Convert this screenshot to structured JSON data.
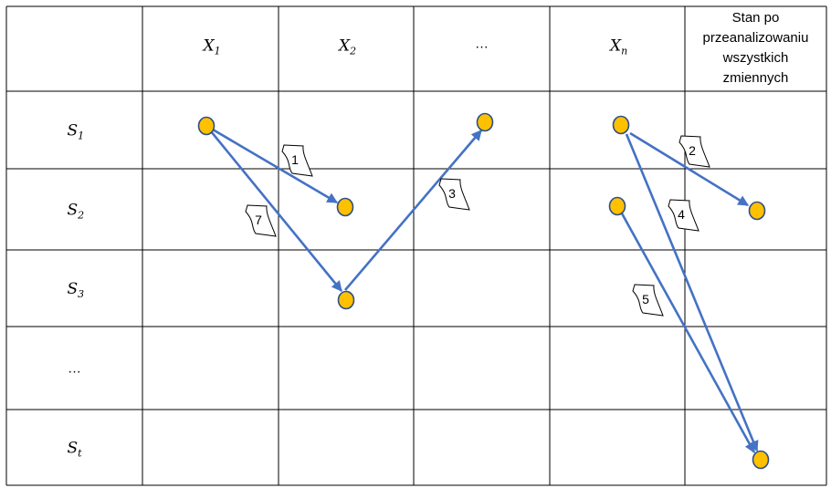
{
  "table": {
    "column_headers": [
      {
        "id": "col-empty",
        "text": ""
      },
      {
        "id": "col-x1",
        "base": "X",
        "sub": "1"
      },
      {
        "id": "col-x2",
        "base": "X",
        "sub": "2"
      },
      {
        "id": "col-ellipsis",
        "text": "…"
      },
      {
        "id": "col-xn",
        "base": "X",
        "sub": "n"
      },
      {
        "id": "col-final",
        "lines": [
          "Stan po",
          "przeanalizowaniu",
          "wszystkich",
          "zmiennych"
        ]
      }
    ],
    "row_headers": [
      {
        "id": "row-s1",
        "base": "S",
        "sub": "1"
      },
      {
        "id": "row-s2",
        "base": "S",
        "sub": "2"
      },
      {
        "id": "row-s3",
        "base": "S",
        "sub": "3"
      },
      {
        "id": "row-ellipsis",
        "text": "…"
      },
      {
        "id": "row-st",
        "base": "S",
        "sub": "t"
      }
    ]
  },
  "states": [
    {
      "id": "x1-s1",
      "column": "X1",
      "row": "S1"
    },
    {
      "id": "x2-s2",
      "column": "X2",
      "row": "S2"
    },
    {
      "id": "x2-s3",
      "column": "X2",
      "row": "S3"
    },
    {
      "id": "ellipsis-s1",
      "column": "…",
      "row": "S1"
    },
    {
      "id": "xn-s1",
      "column": "Xn",
      "row": "S1"
    },
    {
      "id": "xn-s2",
      "column": "Xn",
      "row": "S2"
    },
    {
      "id": "final-s2",
      "column": "Stan po przeanalizowaniu wszystkich zmiennych",
      "row": "S2"
    },
    {
      "id": "final-st",
      "column": "Stan po przeanalizowaniu wszystkich zmiennych",
      "row": "St"
    }
  ],
  "transitions": [
    {
      "label": "1",
      "from": "x1-s1",
      "to": "x2-s2"
    },
    {
      "label": "7",
      "from": "x1-s1",
      "to": "x2-s3"
    },
    {
      "label": "3",
      "from": "x2-s3",
      "to": "ellipsis-s1"
    },
    {
      "label": "2",
      "from": "xn-s1",
      "to": "final-s2"
    },
    {
      "label": "4",
      "from": "xn-s1",
      "to": "final-st"
    },
    {
      "label": "5",
      "from": "xn-s2",
      "to": "final-st"
    }
  ],
  "colors": {
    "arrow": "#4472C4",
    "node_fill": "#FFC000",
    "node_stroke": "#2E4F86",
    "grid": "#000000"
  }
}
